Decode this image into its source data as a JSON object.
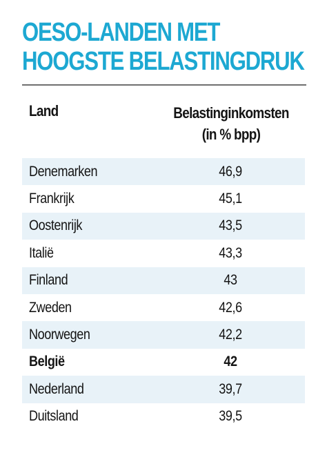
{
  "colors": {
    "title": "#1da8d2",
    "row_shade": "#e8f2f8",
    "rule": "#6f6f6f",
    "text": "#141414"
  },
  "title_lines": [
    "OESO-LANDEN MET",
    "HOOGSTE BELASTINGDRUK"
  ],
  "chart_data": {
    "type": "table",
    "columns": [
      "Land",
      "Belastinginkomsten (in % bpp)"
    ],
    "column_header_lines": {
      "land": "Land",
      "value": [
        "Belastinginkomsten",
        "(in % bpp)"
      ]
    },
    "rows": [
      {
        "land": "Denemarken",
        "value": "46,9",
        "shaded": true,
        "bold": false
      },
      {
        "land": "Frankrijk",
        "value": "45,1",
        "shaded": false,
        "bold": false
      },
      {
        "land": "Oostenrijk",
        "value": "43,5",
        "shaded": true,
        "bold": false
      },
      {
        "land": "Italië",
        "value": "43,3",
        "shaded": false,
        "bold": false
      },
      {
        "land": "Finland",
        "value": "43",
        "shaded": true,
        "bold": false
      },
      {
        "land": "Zweden",
        "value": "42,6",
        "shaded": false,
        "bold": false
      },
      {
        "land": "Noorwegen",
        "value": "42,2",
        "shaded": true,
        "bold": false
      },
      {
        "land": "België",
        "value": "42",
        "shaded": false,
        "bold": true
      },
      {
        "land": "Nederland",
        "value": "39,7",
        "shaded": true,
        "bold": false
      },
      {
        "land": "Duitsland",
        "value": "39,5",
        "shaded": false,
        "bold": false
      }
    ]
  }
}
